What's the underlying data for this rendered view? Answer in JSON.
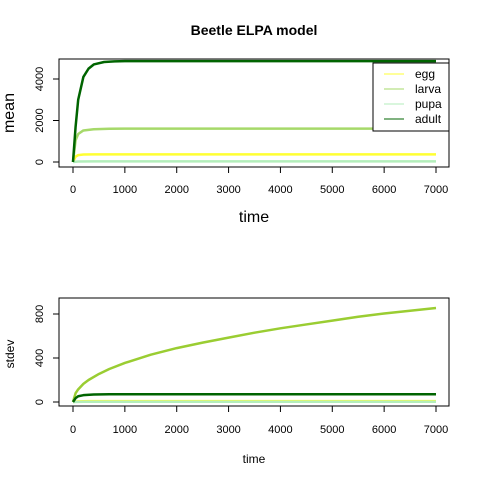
{
  "chart_data": [
    {
      "type": "line",
      "title": "Beetle ELPA model",
      "xlabel": "time",
      "ylabel": "mean",
      "xlim": [
        0,
        7000
      ],
      "ylim": [
        0,
        5000
      ],
      "xticks": [
        "0",
        "1000",
        "2000",
        "3000",
        "4000",
        "5000",
        "6000",
        "7000"
      ],
      "yticks": [
        "0",
        "2000",
        "4000"
      ],
      "xtick_values": [
        0,
        1000,
        2000,
        3000,
        4000,
        5000,
        6000,
        7000
      ],
      "ytick_values": [
        0,
        2000,
        4000
      ],
      "grid": false,
      "legend_position": "top-right",
      "series": [
        {
          "name": "egg",
          "color": "#ffff33",
          "values": [
            [
              0,
              0
            ],
            [
              50,
              260
            ],
            [
              100,
              330
            ],
            [
              200,
              360
            ],
            [
              400,
              370
            ],
            [
              1000,
              370
            ],
            [
              7000,
              370
            ]
          ]
        },
        {
          "name": "larva",
          "color": "#a6d96a",
          "values": [
            [
              0,
              0
            ],
            [
              50,
              1050
            ],
            [
              100,
              1350
            ],
            [
              200,
              1520
            ],
            [
              400,
              1580
            ],
            [
              700,
              1600
            ],
            [
              1000,
              1610
            ],
            [
              7000,
              1610
            ]
          ]
        },
        {
          "name": "pupa",
          "color": "#b3eebb",
          "values": [
            [
              0,
              0
            ],
            [
              100,
              25
            ],
            [
              400,
              30
            ],
            [
              7000,
              30
            ]
          ]
        },
        {
          "name": "adult",
          "color": "#006400",
          "values": [
            [
              0,
              0
            ],
            [
              50,
              1700
            ],
            [
              100,
              3000
            ],
            [
              200,
              4100
            ],
            [
              300,
              4500
            ],
            [
              400,
              4700
            ],
            [
              600,
              4820
            ],
            [
              800,
              4850
            ],
            [
              1000,
              4860
            ],
            [
              7000,
              4860
            ]
          ]
        }
      ]
    },
    {
      "type": "line",
      "title": "",
      "xlabel": "time",
      "ylabel": "stdev",
      "xlim": [
        0,
        7000
      ],
      "ylim": [
        0,
        900
      ],
      "xticks": [
        "0",
        "1000",
        "2000",
        "3000",
        "4000",
        "5000",
        "6000",
        "7000"
      ],
      "yticks": [
        "0",
        "400",
        "800"
      ],
      "xtick_values": [
        0,
        1000,
        2000,
        3000,
        4000,
        5000,
        6000,
        7000
      ],
      "ytick_values": [
        0,
        400,
        800
      ],
      "grid": false,
      "series": [
        {
          "color": "#ffff33",
          "values": [
            [
              0,
              0
            ],
            [
              100,
              6
            ],
            [
              300,
              8
            ],
            [
              7000,
              8
            ]
          ]
        },
        {
          "color": "#9acd32",
          "values": [
            [
              0,
              0
            ],
            [
              50,
              80
            ],
            [
              100,
              115
            ],
            [
              200,
              165
            ],
            [
              300,
              200
            ],
            [
              500,
              255
            ],
            [
              700,
              300
            ],
            [
              1000,
              355
            ],
            [
              1500,
              430
            ],
            [
              2000,
              490
            ],
            [
              2500,
              540
            ],
            [
              3000,
              585
            ],
            [
              3500,
              630
            ],
            [
              4000,
              670
            ],
            [
              4500,
              705
            ],
            [
              5000,
              740
            ],
            [
              5500,
              775
            ],
            [
              6000,
              805
            ],
            [
              6500,
              830
            ],
            [
              7000,
              855
            ]
          ]
        },
        {
          "color": "#b3eebb",
          "values": [
            [
              0,
              0
            ],
            [
              200,
              2
            ],
            [
              7000,
              2
            ]
          ]
        },
        {
          "color": "#006400",
          "values": [
            [
              0,
              0
            ],
            [
              50,
              35
            ],
            [
              100,
              52
            ],
            [
              200,
              62
            ],
            [
              400,
              68
            ],
            [
              700,
              70
            ],
            [
              1000,
              71
            ],
            [
              7000,
              71
            ]
          ]
        }
      ]
    }
  ]
}
